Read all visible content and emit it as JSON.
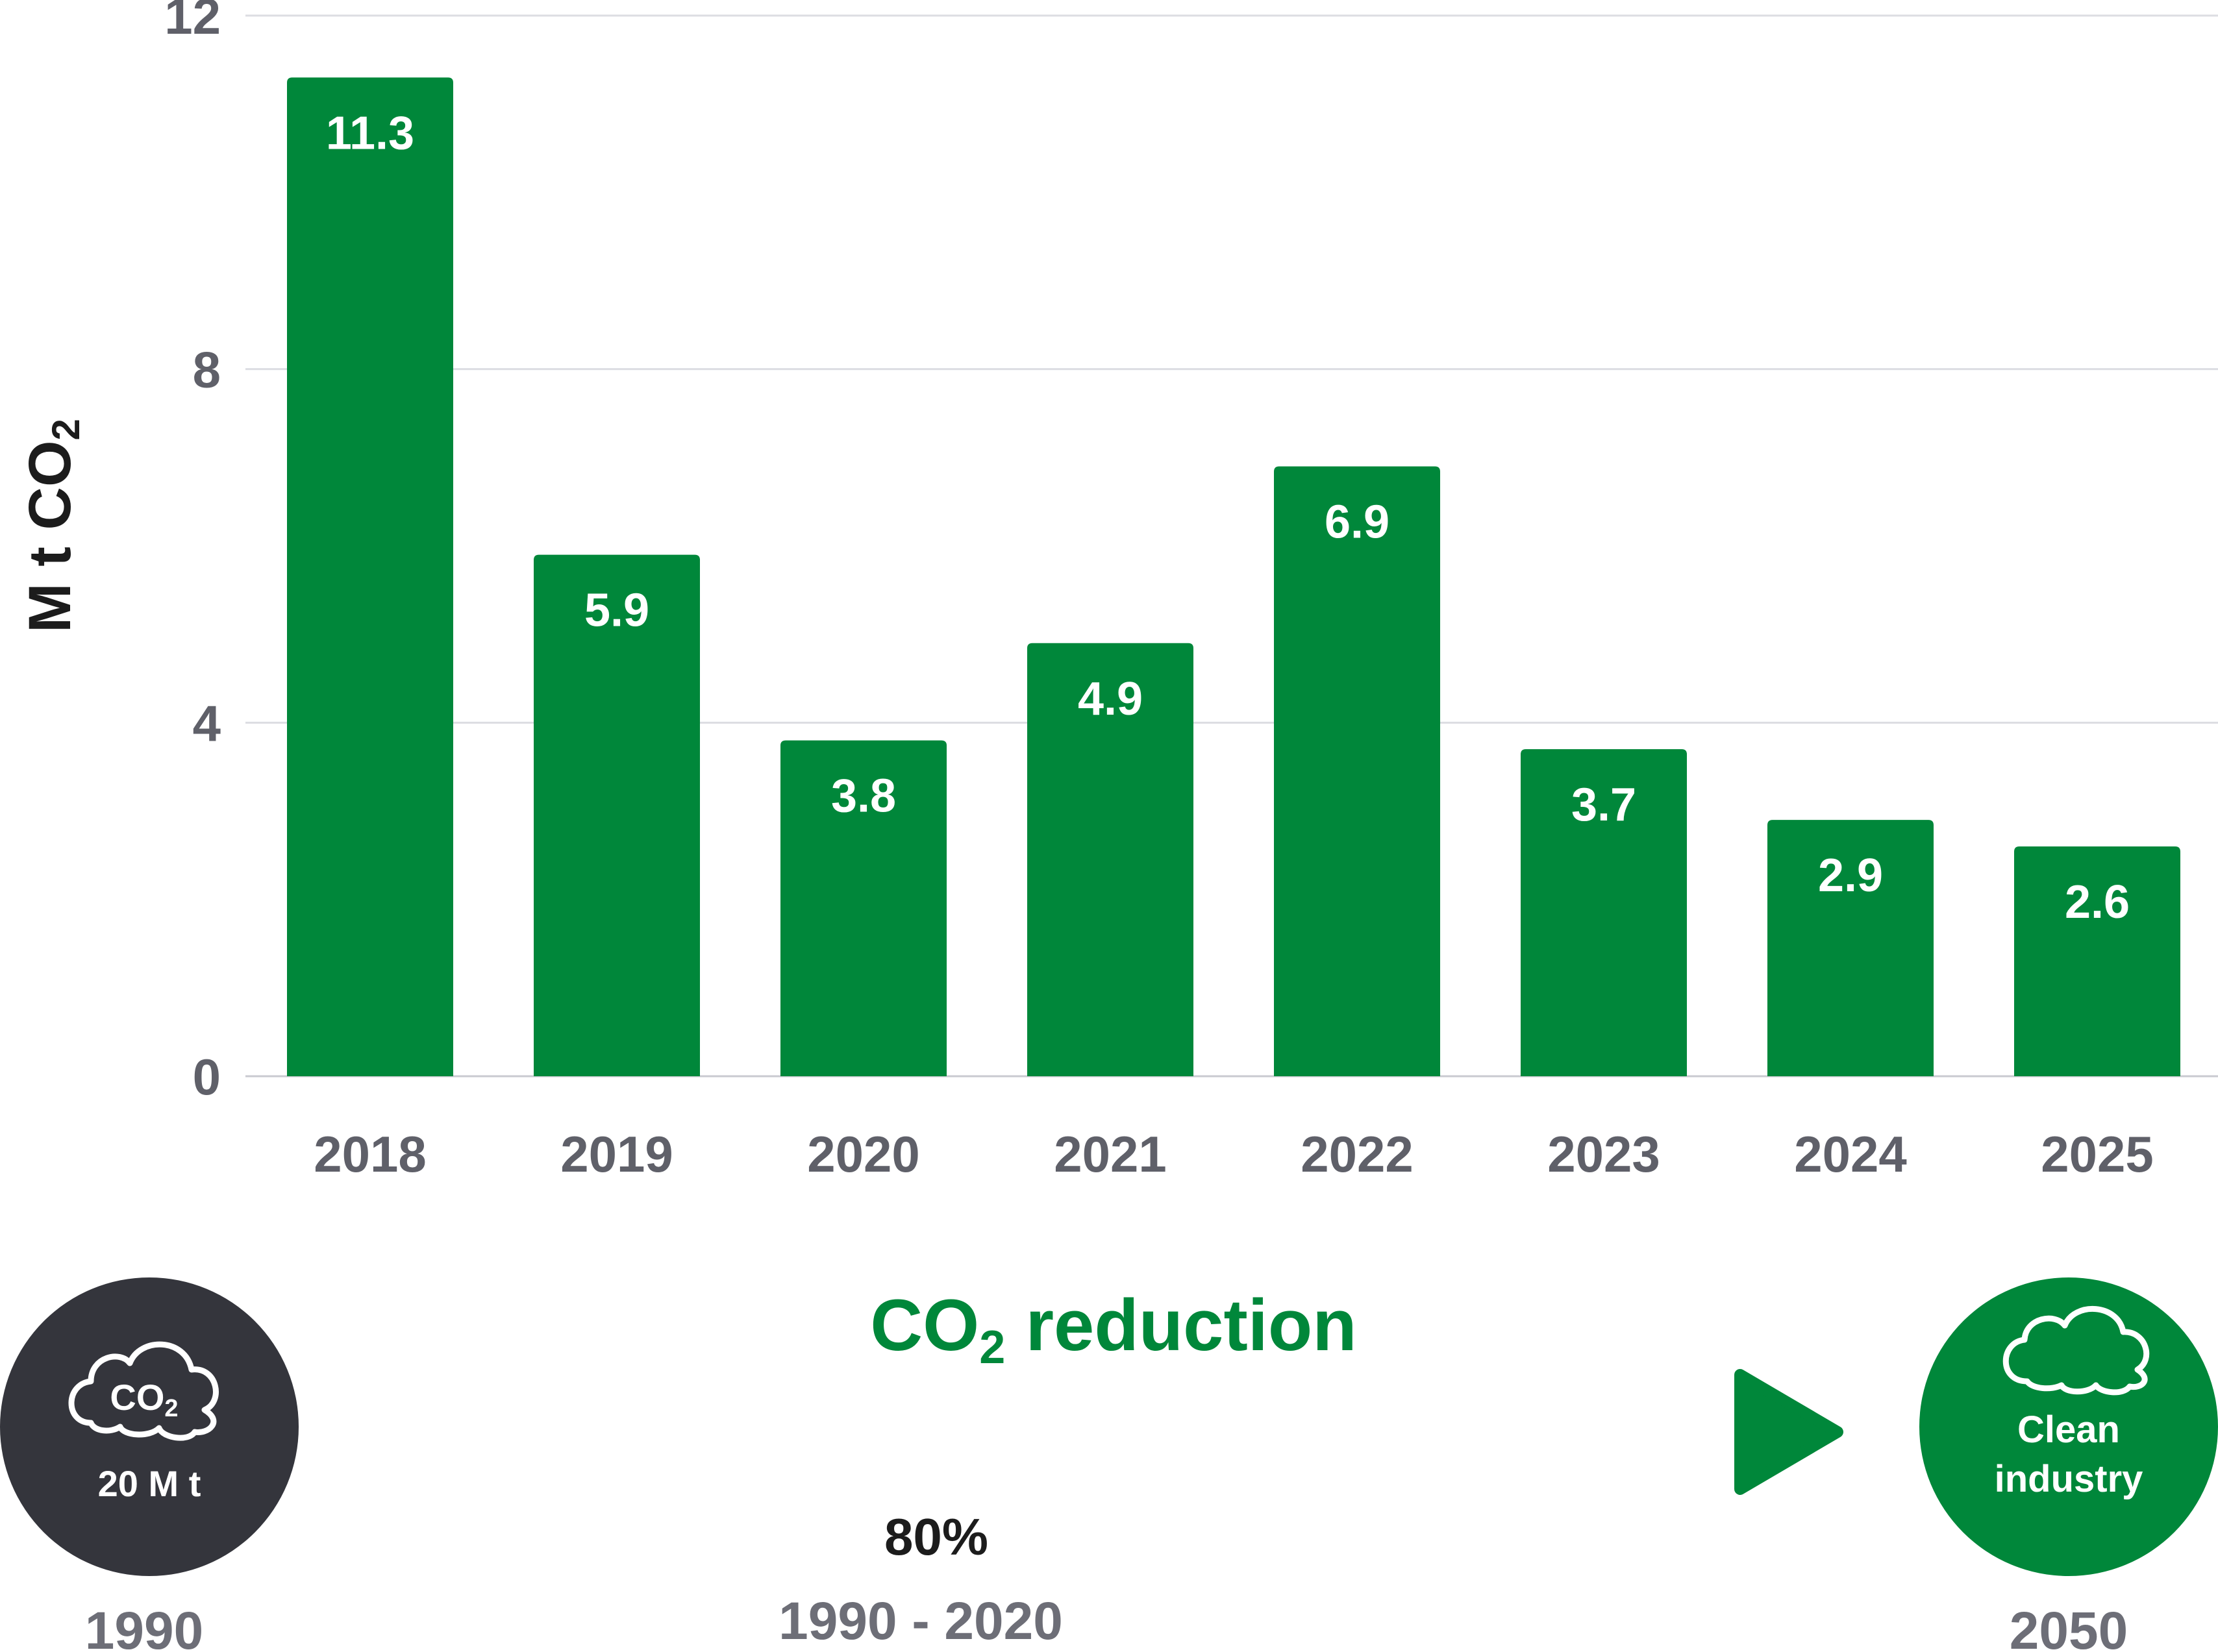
{
  "chart_data": {
    "type": "bar",
    "title": "",
    "xlabel": "",
    "ylabel": "M t CO₂",
    "categories": [
      "2018",
      "2019",
      "2020",
      "2021",
      "2022",
      "2023",
      "2024",
      "2025"
    ],
    "values": [
      11.3,
      5.9,
      3.8,
      4.9,
      6.9,
      3.7,
      2.9,
      2.6
    ],
    "value_labels": [
      "11.3",
      "5.9",
      "3.8",
      "4.9",
      "6.9",
      "3.7",
      "2.9",
      "2.6"
    ],
    "ylim": [
      0,
      12
    ],
    "yticks": [
      0,
      4,
      8,
      12
    ],
    "grid": true,
    "bar_color": "#00873a"
  },
  "infographic": {
    "start": {
      "value": "20 M t",
      "icon_text": "CO₂",
      "year": "1990",
      "color": "#34353c"
    },
    "arrow": {
      "title": "CO₂ reduction",
      "percent": "80%",
      "period": "1990 - 2020"
    },
    "end": {
      "label_line1": "Clean",
      "label_line2": "industry",
      "year": "2050",
      "color": "#00873a"
    }
  }
}
